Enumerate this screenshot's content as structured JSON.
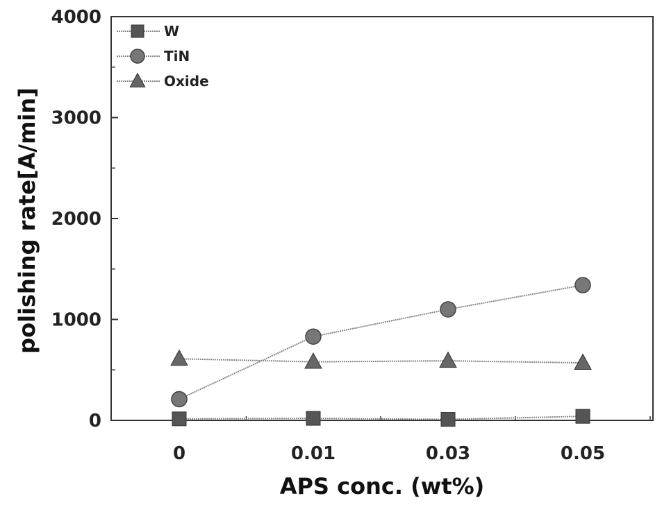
{
  "chart_data": {
    "type": "line",
    "title": "",
    "xlabel": "APS conc. (wt%)",
    "ylabel": "polishing rate[A/min]",
    "categories": [
      "0",
      "0.01",
      "0.03",
      "0.05"
    ],
    "yticks": [
      "0",
      "1000",
      "2000",
      "3000",
      "4000"
    ],
    "ylim": [
      0,
      4000
    ],
    "grid": false,
    "legend_position": "top-left",
    "series": [
      {
        "name": "W",
        "marker": "square",
        "color": "#555555",
        "values": [
          15,
          20,
          10,
          40
        ]
      },
      {
        "name": "TiN",
        "marker": "circle",
        "color": "#777777",
        "values": [
          210,
          830,
          1100,
          1340
        ]
      },
      {
        "name": "Oxide",
        "marker": "triangle",
        "color": "#666666",
        "values": [
          610,
          580,
          590,
          570
        ]
      }
    ]
  }
}
